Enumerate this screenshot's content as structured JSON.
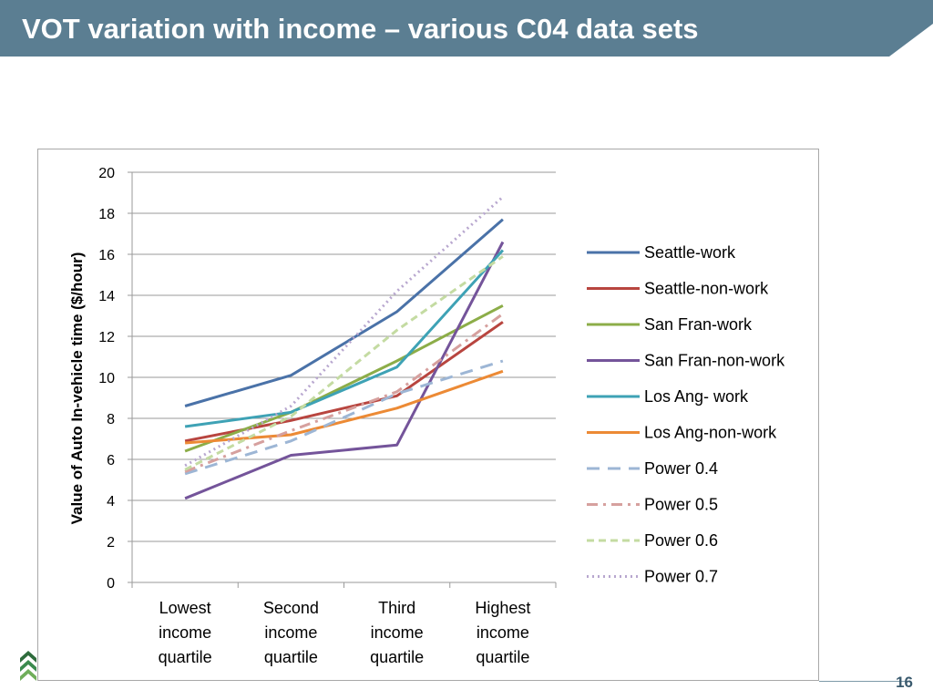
{
  "slide": {
    "title": "VOT variation with income – various C04 data sets",
    "page_number": "16",
    "colors": {
      "title_bar": "#5b7e92",
      "title_text": "#ffffff"
    }
  },
  "chart_data": {
    "type": "line",
    "title": "",
    "xlabel": "",
    "ylabel": "Value of Auto In-vehicle time ($/hour)",
    "ylim": [
      0,
      20
    ],
    "yticks": [
      0,
      2,
      4,
      6,
      8,
      10,
      12,
      14,
      16,
      18,
      20
    ],
    "grid": true,
    "legend_position": "right",
    "categories": [
      [
        "Lowest",
        "income",
        "quartile"
      ],
      [
        "Second",
        "income",
        "quartile"
      ],
      [
        "Third",
        "income",
        "quartile"
      ],
      [
        "Highest",
        "income",
        "quartile"
      ]
    ],
    "series": [
      {
        "name": "Seattle-work",
        "values": [
          8.6,
          10.1,
          13.2,
          17.7
        ],
        "color": "#4a72a8",
        "dash": "solid"
      },
      {
        "name": "Seattle-non-work",
        "values": [
          6.9,
          7.9,
          9.1,
          12.7
        ],
        "color": "#b8453f",
        "dash": "solid"
      },
      {
        "name": "San Fran-work",
        "values": [
          6.4,
          8.3,
          10.8,
          13.5
        ],
        "color": "#8cad48",
        "dash": "solid"
      },
      {
        "name": "San Fran-non-work",
        "values": [
          4.1,
          6.2,
          6.7,
          16.6
        ],
        "color": "#74549a",
        "dash": "solid"
      },
      {
        "name": "Los Ang- work",
        "values": [
          7.6,
          8.3,
          10.5,
          16.2
        ],
        "color": "#3ea2b5",
        "dash": "solid"
      },
      {
        "name": "Los Ang-non-work",
        "values": [
          6.8,
          7.2,
          8.5,
          10.3
        ],
        "color": "#ec8a35",
        "dash": "solid"
      },
      {
        "name": "Power 0.4",
        "values": [
          5.3,
          6.9,
          9.2,
          10.8
        ],
        "color": "#9db6d5",
        "dash": "long"
      },
      {
        "name": "Power 0.5",
        "values": [
          5.4,
          7.4,
          9.3,
          13.1
        ],
        "color": "#d6a09e",
        "dash": "dashdot"
      },
      {
        "name": "Power 0.6",
        "values": [
          5.5,
          8.1,
          12.3,
          15.9
        ],
        "color": "#c4dba2",
        "dash": "dashed"
      },
      {
        "name": "Power 0.7",
        "values": [
          5.7,
          8.6,
          14.2,
          18.8
        ],
        "color": "#b8a7cf",
        "dash": "dotted"
      }
    ]
  }
}
